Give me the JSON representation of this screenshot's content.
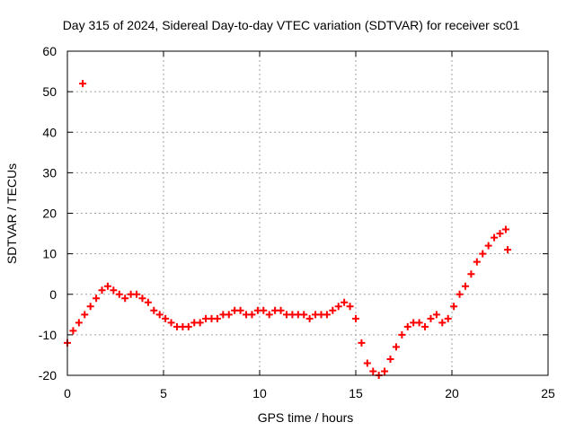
{
  "chart_data": {
    "type": "scatter",
    "title": "Day 315 of 2024, Sidereal Day-to-day VTEC variation (SDTVAR) for receiver sc01",
    "xlabel": "GPS time / hours",
    "ylabel": "SDTVAR / TECUs",
    "xlim": [
      0,
      25
    ],
    "ylim": [
      -20,
      60
    ],
    "xticks": [
      "0",
      "5",
      "10",
      "15",
      "20",
      "25"
    ],
    "yticks": [
      "-20",
      "-10",
      "0",
      "10",
      "20",
      "30",
      "40",
      "50",
      "60"
    ],
    "grid": true,
    "marker_color": "#ff0000",
    "series": [
      {
        "name": "sc01",
        "x": [
          0.0,
          0.3,
          0.6,
          0.9,
          1.2,
          1.5,
          1.8,
          2.1,
          2.4,
          2.7,
          3.0,
          3.3,
          3.6,
          3.9,
          4.2,
          4.5,
          4.8,
          5.1,
          5.4,
          5.7,
          6.0,
          6.3,
          6.6,
          6.9,
          7.2,
          7.5,
          7.8,
          8.1,
          8.4,
          8.7,
          9.0,
          9.3,
          9.6,
          9.9,
          10.2,
          10.5,
          10.8,
          11.1,
          11.4,
          11.7,
          12.0,
          12.3,
          12.6,
          12.9,
          13.2,
          13.5,
          13.8,
          14.1,
          14.4,
          14.7,
          15.0,
          15.3,
          15.6,
          15.9,
          16.2,
          16.5,
          16.8,
          17.1,
          17.4,
          17.7,
          18.0,
          18.3,
          18.6,
          18.9,
          19.2,
          19.5,
          19.8,
          20.1,
          20.4,
          20.7,
          21.0,
          21.3,
          21.6,
          21.9,
          22.2,
          22.5,
          22.8,
          0.8,
          22.9
        ],
        "y": [
          -12,
          -9,
          -7,
          -5,
          -3,
          -1,
          1,
          2,
          1,
          0,
          -1,
          0,
          0,
          -1,
          -2,
          -4,
          -5,
          -6,
          -7,
          -8,
          -8,
          -8,
          -7,
          -7,
          -6,
          -6,
          -6,
          -5,
          -5,
          -4,
          -4,
          -5,
          -5,
          -4,
          -4,
          -5,
          -4,
          -4,
          -5,
          -5,
          -5,
          -5,
          -6,
          -5,
          -5,
          -5,
          -4,
          -3,
          -2,
          -3,
          -6,
          -12,
          -17,
          -19,
          -20,
          -19,
          -16,
          -13,
          -10,
          -8,
          -7,
          -7,
          -8,
          -6,
          -5,
          -7,
          -6,
          -3,
          0,
          2,
          5,
          8,
          10,
          12,
          14,
          15,
          16,
          52,
          11
        ]
      }
    ]
  }
}
